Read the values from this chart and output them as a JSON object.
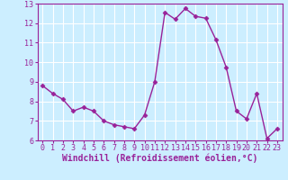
{
  "x": [
    0,
    1,
    2,
    3,
    4,
    5,
    6,
    7,
    8,
    9,
    10,
    11,
    12,
    13,
    14,
    15,
    16,
    17,
    18,
    19,
    20,
    21,
    22,
    23
  ],
  "y": [
    8.8,
    8.4,
    8.1,
    7.5,
    7.7,
    7.5,
    7.0,
    6.8,
    6.7,
    6.6,
    7.3,
    9.0,
    12.55,
    12.2,
    12.75,
    12.35,
    12.25,
    11.15,
    9.75,
    7.5,
    7.1,
    8.4,
    6.1,
    6.6
  ],
  "line_color": "#992299",
  "marker": "D",
  "marker_size": 2.5,
  "bg_color": "#cceeff",
  "grid_color": "#ffffff",
  "xlabel": "Windchill (Refroidissement éolien,°C)",
  "xlabel_color": "#992299",
  "tick_color": "#992299",
  "spine_color": "#992299",
  "ylim": [
    6,
    13
  ],
  "xlim": [
    -0.5,
    23.5
  ],
  "yticks": [
    6,
    7,
    8,
    9,
    10,
    11,
    12,
    13
  ],
  "xticks": [
    0,
    1,
    2,
    3,
    4,
    5,
    6,
    7,
    8,
    9,
    10,
    11,
    12,
    13,
    14,
    15,
    16,
    17,
    18,
    19,
    20,
    21,
    22,
    23
  ],
  "tick_fontsize": 6,
  "xlabel_fontsize": 7,
  "linewidth": 1.0
}
